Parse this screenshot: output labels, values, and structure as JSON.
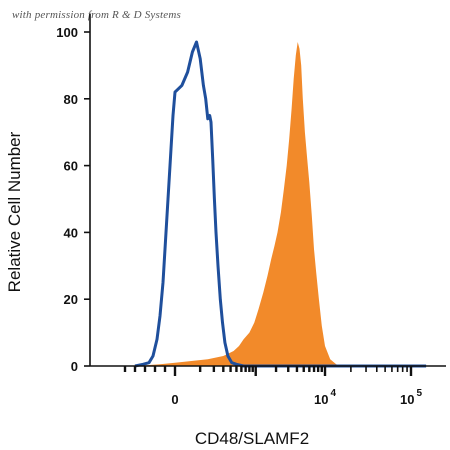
{
  "watermark": "with permission from R & D Systems",
  "chart_data": {
    "type": "area",
    "xlabel": "CD48/SLAMF2",
    "ylabel": "Relative Cell Number",
    "ylim": [
      0,
      100
    ],
    "yticks": [
      0,
      20,
      40,
      60,
      80,
      100
    ],
    "xscale": "biexponential",
    "xticks": [
      {
        "value": 0,
        "label": "0",
        "exp": ""
      },
      {
        "value": 10000,
        "label": "10",
        "exp": "4"
      },
      {
        "value": 100000,
        "label": "10",
        "exp": "5"
      }
    ],
    "grid": false,
    "legend": "none",
    "series": [
      {
        "style": "filled",
        "color": "#f28a2a",
        "points": [
          [
            -400,
            0
          ],
          [
            -150,
            0.5
          ],
          [
            0,
            1
          ],
          [
            150,
            2
          ],
          [
            300,
            3
          ],
          [
            450,
            4.5
          ],
          [
            550,
            6
          ],
          [
            650,
            8
          ],
          [
            800,
            10
          ],
          [
            950,
            13
          ],
          [
            1100,
            17
          ],
          [
            1300,
            22
          ],
          [
            1500,
            27
          ],
          [
            1700,
            32
          ],
          [
            1900,
            36
          ],
          [
            2100,
            40
          ],
          [
            2350,
            46
          ],
          [
            2600,
            53
          ],
          [
            2850,
            60
          ],
          [
            3100,
            68
          ],
          [
            3350,
            77
          ],
          [
            3600,
            86
          ],
          [
            3850,
            93
          ],
          [
            4100,
            97
          ],
          [
            4350,
            95
          ],
          [
            4600,
            90
          ],
          [
            4850,
            80
          ],
          [
            5200,
            70
          ],
          [
            5600,
            62
          ],
          [
            6000,
            55
          ],
          [
            6500,
            45
          ],
          [
            7000,
            35
          ],
          [
            7500,
            28
          ],
          [
            8200,
            20
          ],
          [
            9000,
            12
          ],
          [
            10000,
            6
          ],
          [
            11500,
            2
          ],
          [
            13500,
            0.5
          ],
          [
            16000,
            0
          ],
          [
            40000,
            0
          ],
          [
            150000,
            0
          ]
        ]
      },
      {
        "style": "line",
        "color": "#1f4f9c",
        "points": [
          [
            -400,
            0
          ],
          [
            -320,
            0.5
          ],
          [
            -260,
            1
          ],
          [
            -220,
            3
          ],
          [
            -180,
            8
          ],
          [
            -150,
            15
          ],
          [
            -120,
            25
          ],
          [
            -100,
            35
          ],
          [
            -80,
            45
          ],
          [
            -60,
            55
          ],
          [
            -40,
            65
          ],
          [
            -20,
            75
          ],
          [
            0,
            82
          ],
          [
            20,
            84
          ],
          [
            40,
            88
          ],
          [
            60,
            94
          ],
          [
            80,
            97
          ],
          [
            100,
            92
          ],
          [
            120,
            84
          ],
          [
            135,
            80
          ],
          [
            150,
            74
          ],
          [
            165,
            75
          ],
          [
            175,
            73
          ],
          [
            190,
            62
          ],
          [
            205,
            50
          ],
          [
            220,
            40
          ],
          [
            240,
            30
          ],
          [
            265,
            20
          ],
          [
            290,
            13
          ],
          [
            320,
            7
          ],
          [
            360,
            3
          ],
          [
            420,
            1
          ],
          [
            500,
            0.5
          ],
          [
            650,
            0
          ],
          [
            150000,
            0
          ]
        ]
      }
    ]
  }
}
